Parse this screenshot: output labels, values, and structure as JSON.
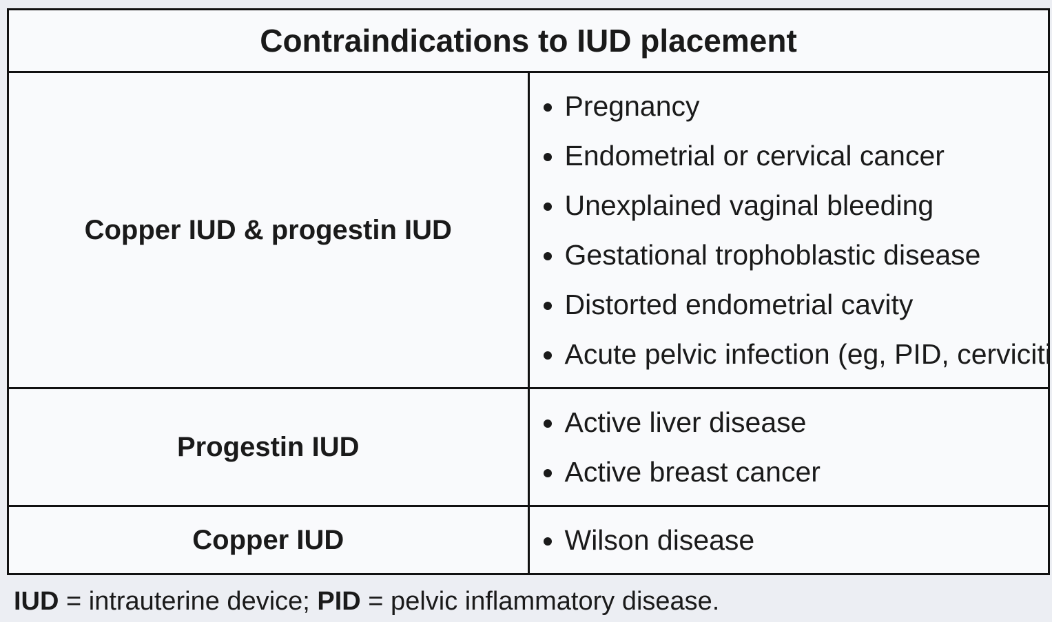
{
  "table": {
    "title": "Contraindications to IUD placement",
    "rows": [
      {
        "label": "Copper IUD & progestin IUD",
        "items": [
          "Pregnancy",
          "Endometrial or cervical cancer",
          "Unexplained vaginal bleeding",
          "Gestational trophoblastic disease",
          "Distorted endometrial cavity",
          "Acute pelvic infection (eg, PID, cervicitis)"
        ]
      },
      {
        "label": "Progestin IUD",
        "items": [
          "Active liver disease",
          "Active breast cancer"
        ]
      },
      {
        "label": "Copper IUD",
        "items": [
          "Wilson disease"
        ]
      }
    ]
  },
  "footnote": [
    {
      "text": "IUD",
      "bold": true
    },
    {
      "text": " = intrauterine device; ",
      "bold": false
    },
    {
      "text": "PID",
      "bold": true
    },
    {
      "text": " = pelvic inflammatory disease.",
      "bold": false
    }
  ]
}
